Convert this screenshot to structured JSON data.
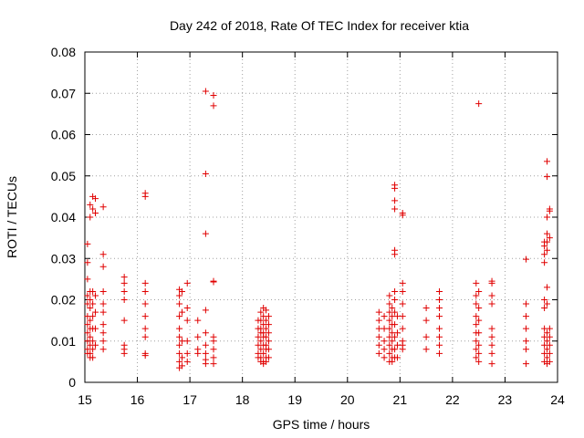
{
  "chart_data": {
    "type": "scatter",
    "title": "Day 242 of 2018, Rate Of TEC Index for receiver ktia",
    "xlabel": "GPS time / hours",
    "ylabel": "ROTI / TECUs",
    "xlim": [
      15,
      24
    ],
    "ylim": [
      0,
      0.08
    ],
    "x_ticks": [
      15,
      16,
      17,
      18,
      19,
      20,
      21,
      22,
      23,
      24
    ],
    "y_ticks": [
      0,
      0.01,
      0.02,
      0.03,
      0.04,
      0.05,
      0.06,
      0.07,
      0.08
    ],
    "x_tick_labels": [
      "15",
      "16",
      "17",
      "18",
      "19",
      "20",
      "21",
      "22",
      "23",
      "24"
    ],
    "y_tick_labels": [
      "0",
      "0.01",
      "0.02",
      "0.03",
      "0.04",
      "0.05",
      "0.06",
      "0.07",
      "0.08"
    ],
    "grid": true,
    "marker": "+",
    "series": [
      {
        "name": "ROTI",
        "color": "#e00000",
        "points": [
          [
            15.05,
            0.0335
          ],
          [
            15.05,
            0.029
          ],
          [
            15.05,
            0.025
          ],
          [
            15.05,
            0.021
          ],
          [
            15.05,
            0.019
          ],
          [
            15.05,
            0.016
          ],
          [
            15.05,
            0.014
          ],
          [
            15.05,
            0.012
          ],
          [
            15.05,
            0.01
          ],
          [
            15.05,
            0.008
          ],
          [
            15.05,
            0.007
          ],
          [
            15.1,
            0.022
          ],
          [
            15.1,
            0.02
          ],
          [
            15.1,
            0.018
          ],
          [
            15.1,
            0.015
          ],
          [
            15.1,
            0.013
          ],
          [
            15.1,
            0.011
          ],
          [
            15.1,
            0.009
          ],
          [
            15.1,
            0.007
          ],
          [
            15.1,
            0.006
          ],
          [
            15.1,
            0.04
          ],
          [
            15.1,
            0.043
          ],
          [
            15.15,
            0.045
          ],
          [
            15.15,
            0.042
          ],
          [
            15.15,
            0.022
          ],
          [
            15.15,
            0.019
          ],
          [
            15.15,
            0.016
          ],
          [
            15.15,
            0.013
          ],
          [
            15.15,
            0.01
          ],
          [
            15.15,
            0.008
          ],
          [
            15.15,
            0.006
          ],
          [
            15.2,
            0.0445
          ],
          [
            15.2,
            0.041
          ],
          [
            15.2,
            0.021
          ],
          [
            15.2,
            0.017
          ],
          [
            15.2,
            0.013
          ],
          [
            15.2,
            0.009
          ],
          [
            15.35,
            0.0425
          ],
          [
            15.35,
            0.031
          ],
          [
            15.35,
            0.028
          ],
          [
            15.35,
            0.022
          ],
          [
            15.35,
            0.019
          ],
          [
            15.35,
            0.017
          ],
          [
            15.35,
            0.014
          ],
          [
            15.35,
            0.012
          ],
          [
            15.35,
            0.01
          ],
          [
            15.35,
            0.008
          ],
          [
            15.75,
            0.0255
          ],
          [
            15.75,
            0.024
          ],
          [
            15.75,
            0.022
          ],
          [
            15.75,
            0.02
          ],
          [
            15.75,
            0.015
          ],
          [
            15.75,
            0.009
          ],
          [
            15.75,
            0.008
          ],
          [
            15.75,
            0.007
          ],
          [
            16.15,
            0.0458
          ],
          [
            16.15,
            0.045
          ],
          [
            16.15,
            0.024
          ],
          [
            16.15,
            0.022
          ],
          [
            16.15,
            0.019
          ],
          [
            16.15,
            0.016
          ],
          [
            16.15,
            0.013
          ],
          [
            16.15,
            0.011
          ],
          [
            16.15,
            0.007
          ],
          [
            16.15,
            0.0065
          ],
          [
            16.8,
            0.0225
          ],
          [
            16.8,
            0.021
          ],
          [
            16.8,
            0.019
          ],
          [
            16.8,
            0.016
          ],
          [
            16.8,
            0.013
          ],
          [
            16.8,
            0.011
          ],
          [
            16.8,
            0.009
          ],
          [
            16.8,
            0.007
          ],
          [
            16.8,
            0.005
          ],
          [
            16.8,
            0.0035
          ],
          [
            16.85,
            0.022
          ],
          [
            16.85,
            0.017
          ],
          [
            16.85,
            0.01
          ],
          [
            16.85,
            0.006
          ],
          [
            16.85,
            0.004
          ],
          [
            16.95,
            0.024
          ],
          [
            16.95,
            0.018
          ],
          [
            16.95,
            0.015
          ],
          [
            16.95,
            0.01
          ],
          [
            16.95,
            0.007
          ],
          [
            16.95,
            0.005
          ],
          [
            17.15,
            0.015
          ],
          [
            17.15,
            0.011
          ],
          [
            17.15,
            0.008
          ],
          [
            17.15,
            0.007
          ],
          [
            17.3,
            0.0705
          ],
          [
            17.3,
            0.0505
          ],
          [
            17.3,
            0.036
          ],
          [
            17.3,
            0.0175
          ],
          [
            17.3,
            0.012
          ],
          [
            17.3,
            0.009
          ],
          [
            17.3,
            0.007
          ],
          [
            17.3,
            0.0055
          ],
          [
            17.3,
            0.0045
          ],
          [
            17.45,
            0.0695
          ],
          [
            17.45,
            0.067
          ],
          [
            17.45,
            0.0245
          ],
          [
            17.45,
            0.0243
          ],
          [
            17.45,
            0.011
          ],
          [
            17.45,
            0.01
          ],
          [
            17.45,
            0.008
          ],
          [
            17.45,
            0.006
          ],
          [
            17.45,
            0.0045
          ],
          [
            18.3,
            0.015
          ],
          [
            18.3,
            0.013
          ],
          [
            18.3,
            0.011
          ],
          [
            18.3,
            0.009
          ],
          [
            18.3,
            0.007
          ],
          [
            18.3,
            0.006
          ],
          [
            18.35,
            0.017
          ],
          [
            18.35,
            0.015
          ],
          [
            18.35,
            0.013
          ],
          [
            18.35,
            0.012
          ],
          [
            18.35,
            0.01
          ],
          [
            18.35,
            0.008
          ],
          [
            18.35,
            0.006
          ],
          [
            18.35,
            0.005
          ],
          [
            18.4,
            0.018
          ],
          [
            18.4,
            0.016
          ],
          [
            18.4,
            0.014
          ],
          [
            18.4,
            0.012
          ],
          [
            18.4,
            0.011
          ],
          [
            18.4,
            0.009
          ],
          [
            18.4,
            0.007
          ],
          [
            18.4,
            0.005
          ],
          [
            18.4,
            0.0045
          ],
          [
            18.45,
            0.0175
          ],
          [
            18.45,
            0.015
          ],
          [
            18.45,
            0.013
          ],
          [
            18.45,
            0.011
          ],
          [
            18.45,
            0.009
          ],
          [
            18.45,
            0.008
          ],
          [
            18.45,
            0.006
          ],
          [
            18.45,
            0.005
          ],
          [
            18.5,
            0.016
          ],
          [
            18.5,
            0.014
          ],
          [
            18.5,
            0.012
          ],
          [
            18.5,
            0.01
          ],
          [
            18.5,
            0.008
          ],
          [
            18.5,
            0.006
          ],
          [
            20.6,
            0.017
          ],
          [
            20.6,
            0.015
          ],
          [
            20.6,
            0.013
          ],
          [
            20.6,
            0.011
          ],
          [
            20.6,
            0.009
          ],
          [
            20.6,
            0.007
          ],
          [
            20.7,
            0.016
          ],
          [
            20.7,
            0.013
          ],
          [
            20.7,
            0.01
          ],
          [
            20.7,
            0.008
          ],
          [
            20.7,
            0.006
          ],
          [
            20.8,
            0.021
          ],
          [
            20.8,
            0.019
          ],
          [
            20.8,
            0.017
          ],
          [
            20.8,
            0.015
          ],
          [
            20.8,
            0.013
          ],
          [
            20.8,
            0.011
          ],
          [
            20.8,
            0.009
          ],
          [
            20.8,
            0.007
          ],
          [
            20.8,
            0.005
          ],
          [
            20.85,
            0.018
          ],
          [
            20.85,
            0.016
          ],
          [
            20.85,
            0.014
          ],
          [
            20.85,
            0.012
          ],
          [
            20.85,
            0.01
          ],
          [
            20.85,
            0.008
          ],
          [
            20.85,
            0.006
          ],
          [
            20.85,
            0.005
          ],
          [
            20.9,
            0.0478
          ],
          [
            20.9,
            0.047
          ],
          [
            20.9,
            0.044
          ],
          [
            20.9,
            0.042
          ],
          [
            20.9,
            0.032
          ],
          [
            20.9,
            0.031
          ],
          [
            20.9,
            0.022
          ],
          [
            20.9,
            0.02
          ],
          [
            20.9,
            0.017
          ],
          [
            20.9,
            0.014
          ],
          [
            20.9,
            0.011
          ],
          [
            20.9,
            0.008
          ],
          [
            20.9,
            0.006
          ],
          [
            20.95,
            0.016
          ],
          [
            20.95,
            0.012
          ],
          [
            20.95,
            0.009
          ],
          [
            20.95,
            0.006
          ],
          [
            21.05,
            0.041
          ],
          [
            21.05,
            0.0405
          ],
          [
            21.05,
            0.024
          ],
          [
            21.05,
            0.022
          ],
          [
            21.05,
            0.019
          ],
          [
            21.05,
            0.016
          ],
          [
            21.05,
            0.013
          ],
          [
            21.05,
            0.01
          ],
          [
            21.05,
            0.009
          ],
          [
            21.05,
            0.008
          ],
          [
            21.5,
            0.018
          ],
          [
            21.5,
            0.015
          ],
          [
            21.5,
            0.011
          ],
          [
            21.5,
            0.008
          ],
          [
            21.75,
            0.022
          ],
          [
            21.75,
            0.02
          ],
          [
            21.75,
            0.018
          ],
          [
            21.75,
            0.016
          ],
          [
            21.75,
            0.013
          ],
          [
            21.75,
            0.011
          ],
          [
            21.75,
            0.009
          ],
          [
            21.75,
            0.007
          ],
          [
            22.45,
            0.024
          ],
          [
            22.45,
            0.021
          ],
          [
            22.45,
            0.019
          ],
          [
            22.45,
            0.016
          ],
          [
            22.45,
            0.014
          ],
          [
            22.45,
            0.012
          ],
          [
            22.45,
            0.01
          ],
          [
            22.45,
            0.008
          ],
          [
            22.45,
            0.006
          ],
          [
            22.5,
            0.0675
          ],
          [
            22.5,
            0.022
          ],
          [
            22.5,
            0.018
          ],
          [
            22.5,
            0.015
          ],
          [
            22.5,
            0.012
          ],
          [
            22.5,
            0.009
          ],
          [
            22.5,
            0.007
          ],
          [
            22.5,
            0.005
          ],
          [
            22.75,
            0.0245
          ],
          [
            22.75,
            0.024
          ],
          [
            22.75,
            0.021
          ],
          [
            22.75,
            0.019
          ],
          [
            22.75,
            0.013
          ],
          [
            22.75,
            0.011
          ],
          [
            22.75,
            0.009
          ],
          [
            22.75,
            0.007
          ],
          [
            22.75,
            0.0045
          ],
          [
            23.4,
            0.0298
          ],
          [
            23.4,
            0.019
          ],
          [
            23.4,
            0.016
          ],
          [
            23.4,
            0.013
          ],
          [
            23.4,
            0.01
          ],
          [
            23.4,
            0.008
          ],
          [
            23.4,
            0.0045
          ],
          [
            23.75,
            0.034
          ],
          [
            23.75,
            0.033
          ],
          [
            23.75,
            0.031
          ],
          [
            23.75,
            0.029
          ],
          [
            23.75,
            0.02
          ],
          [
            23.75,
            0.018
          ],
          [
            23.75,
            0.013
          ],
          [
            23.75,
            0.011
          ],
          [
            23.75,
            0.009
          ],
          [
            23.75,
            0.007
          ],
          [
            23.75,
            0.005
          ],
          [
            23.8,
            0.0535
          ],
          [
            23.8,
            0.0498
          ],
          [
            23.8,
            0.04
          ],
          [
            23.8,
            0.036
          ],
          [
            23.8,
            0.034
          ],
          [
            23.8,
            0.032
          ],
          [
            23.8,
            0.023
          ],
          [
            23.8,
            0.019
          ],
          [
            23.8,
            0.012
          ],
          [
            23.8,
            0.01
          ],
          [
            23.8,
            0.008
          ],
          [
            23.8,
            0.006
          ],
          [
            23.8,
            0.0045
          ],
          [
            23.85,
            0.042
          ],
          [
            23.85,
            0.0415
          ],
          [
            23.85,
            0.035
          ],
          [
            23.85,
            0.013
          ],
          [
            23.85,
            0.011
          ],
          [
            23.85,
            0.009
          ],
          [
            23.85,
            0.007
          ],
          [
            23.85,
            0.005
          ]
        ]
      }
    ]
  }
}
